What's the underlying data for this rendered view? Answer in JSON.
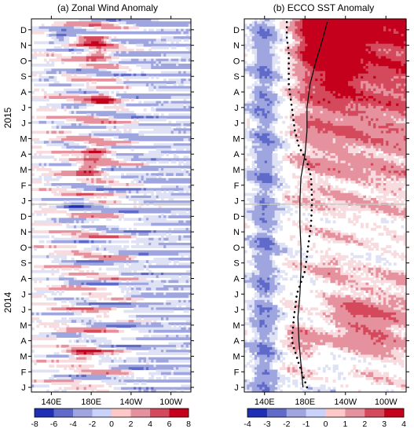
{
  "chart_data": [
    {
      "type": "heatmap",
      "title": "(a) Zonal Wind Anomaly",
      "x_tick_labels": [
        "140E",
        "180E",
        "140W",
        "100W"
      ],
      "y_tick_labels": [
        "J",
        "F",
        "M",
        "A",
        "M",
        "J",
        "J",
        "A",
        "S",
        "O",
        "N",
        "D",
        "J",
        "F",
        "M",
        "A",
        "M",
        "J",
        "J",
        "A",
        "S",
        "O",
        "N",
        "D"
      ],
      "year_labels": [
        "2014",
        "2015"
      ],
      "colorbar": {
        "ticks": [
          "-8",
          "-6",
          "-4",
          "-2",
          "0",
          "2",
          "4",
          "6",
          "8"
        ],
        "range": [
          -8,
          8
        ],
        "low_color": "#1f2fb4",
        "mid_color": "#ffffff",
        "high_color": "#c4001c"
      },
      "features": [
        {
          "lon": 178,
          "month": 14.1,
          "value": 7.5
        },
        {
          "lon": 185,
          "month": 15.2,
          "value": 7.0
        },
        {
          "lon": 192,
          "month": 18.6,
          "value": 6.5
        },
        {
          "lon": 186,
          "month": 21.4,
          "value": 6.0
        },
        {
          "lon": 184,
          "month": 22.3,
          "value": 7.0
        },
        {
          "lon": 172,
          "month": 2.1,
          "value": 6.5
        },
        {
          "lon": 165,
          "month": 11.6,
          "value": -4.5
        },
        {
          "lon": 150,
          "month": 22.6,
          "value": -5.0
        },
        {
          "lon": 140,
          "month": 20.0,
          "value": -3.0
        }
      ]
    },
    {
      "type": "heatmap",
      "title": "(b) ECCO SST Anomaly",
      "x_tick_labels": [
        "140E",
        "180E",
        "140W",
        "100W"
      ],
      "y_tick_labels": [
        "J",
        "F",
        "M",
        "A",
        "M",
        "J",
        "J",
        "A",
        "S",
        "O",
        "N",
        "D",
        "J",
        "F",
        "M",
        "A",
        "M",
        "J",
        "J",
        "A",
        "S",
        "O",
        "N",
        "D"
      ],
      "colorbar": {
        "ticks": [
          "-4",
          "-3",
          "-2",
          "-1",
          "0",
          "1",
          "2",
          "3",
          "4"
        ],
        "range": [
          -4,
          4
        ],
        "low_color": "#1f2fb4",
        "mid_color": "#ffffff",
        "high_color": "#c4001c"
      },
      "solid_contour": [
        [
          0,
          178
        ],
        [
          1.5,
          176
        ],
        [
          3,
          174
        ],
        [
          4.5,
          173
        ],
        [
          6,
          175
        ],
        [
          7.5,
          176
        ],
        [
          9,
          176
        ],
        [
          10.5,
          175
        ],
        [
          12,
          175
        ],
        [
          13.5,
          176
        ],
        [
          15,
          180
        ],
        [
          16.5,
          182
        ],
        [
          18,
          182
        ],
        [
          19.5,
          185
        ],
        [
          21,
          191
        ],
        [
          22.5,
          198
        ],
        [
          23.5,
          202
        ]
      ],
      "dotted_contour": [
        [
          0,
          182
        ],
        [
          1.5,
          174
        ],
        [
          3,
          167
        ],
        [
          4.5,
          169
        ],
        [
          6,
          172
        ],
        [
          7.5,
          180
        ],
        [
          9,
          183
        ],
        [
          10.5,
          186
        ],
        [
          12,
          187
        ],
        [
          13.5,
          186
        ],
        [
          14.5,
          182
        ],
        [
          15.5,
          174
        ],
        [
          16.5,
          170
        ],
        [
          17.5,
          168
        ],
        [
          18.5,
          166
        ],
        [
          19.5,
          164
        ],
        [
          20.5,
          164
        ],
        [
          21.5,
          164
        ],
        [
          22.5,
          162
        ],
        [
          23.5,
          162
        ]
      ],
      "features": [
        {
          "lon": 202,
          "month": 22.5,
          "value": 4.0
        },
        {
          "lon": 216,
          "month": 20.0,
          "value": 3.5
        },
        {
          "lon": 232,
          "month": 23.0,
          "value": 3.8
        },
        {
          "lon": 195,
          "month": 22.0,
          "value": 3.5
        },
        {
          "lon": 205,
          "month": 8.0,
          "value": 1.5
        },
        {
          "lon": 228,
          "month": 4.5,
          "value": 1.8
        },
        {
          "lon": 250,
          "month": 3.5,
          "value": 2.0
        },
        {
          "lon": 176,
          "month": 3.0,
          "value": 2.5
        },
        {
          "lon": 210,
          "month": 1.2,
          "value": -1.5
        },
        {
          "lon": 192,
          "month": 5.0,
          "value": -1.2
        }
      ]
    }
  ]
}
